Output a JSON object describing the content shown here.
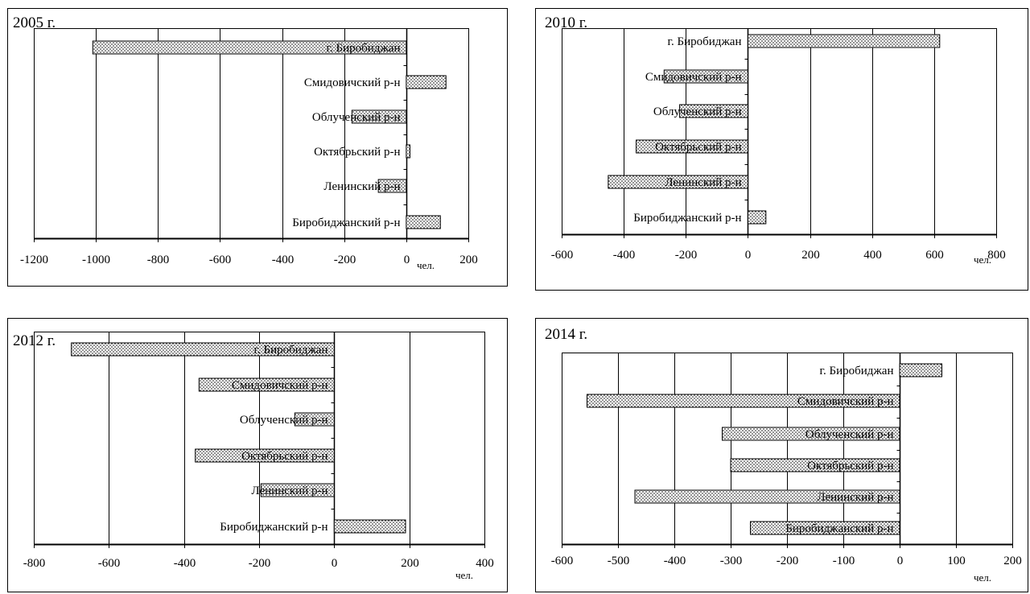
{
  "unit_label": "чел.",
  "chart_data": [
    {
      "type": "bar",
      "orientation": "horizontal",
      "title": "2005 г.",
      "categories": [
        "г. Биробиджан",
        "Смидовичский р-н",
        "Облученский р-н",
        "Октябрьский р-н",
        "Ленинский р-н",
        "Биробиджанский р-н"
      ],
      "values": [
        -1010,
        128,
        -175,
        12,
        -90,
        110
      ],
      "xlabel": "чел.",
      "xlim": [
        -1200,
        200
      ],
      "xticks": [
        -1200,
        -1000,
        -800,
        -600,
        -400,
        -200,
        0,
        200
      ],
      "grid": true
    },
    {
      "type": "bar",
      "orientation": "horizontal",
      "title": "2010 г.",
      "categories": [
        "г. Биробиджан",
        "Смидовичский р-н",
        "Облученский р-н",
        "Октябрьский р-н",
        "Ленинский р-н",
        "Биробиджанский р-н"
      ],
      "values": [
        618,
        -270,
        -220,
        -360,
        -450,
        58
      ],
      "xlabel": "чел.",
      "xlim": [
        -600,
        800
      ],
      "xticks": [
        -600,
        -400,
        -200,
        0,
        200,
        400,
        600,
        800
      ],
      "grid": true
    },
    {
      "type": "bar",
      "orientation": "horizontal",
      "title": "2012 г.",
      "categories": [
        "г. Биробиджан",
        "Смидовичский р-н",
        "Облученский р-н",
        "Октябрьский р-н",
        "Ленинский р-н",
        "Биробиджанский р-н"
      ],
      "values": [
        -700,
        -360,
        -105,
        -370,
        -195,
        190
      ],
      "xlabel": "чел.",
      "xlim": [
        -800,
        400
      ],
      "xticks": [
        -800,
        -600,
        -400,
        -200,
        0,
        200,
        400
      ],
      "grid": true
    },
    {
      "type": "bar",
      "orientation": "horizontal",
      "title": "2014 г.",
      "categories": [
        "г. Биробиджан",
        "Смидовичский р-н",
        "Облученский р-н",
        "Октябрьский р-н",
        "Ленинский р-н",
        "Биробиджанский р-н"
      ],
      "values": [
        75,
        -555,
        -315,
        -300,
        -470,
        -265
      ],
      "xlabel": "чел.",
      "xlim": [
        -600,
        200
      ],
      "xticks": [
        -600,
        -500,
        -400,
        -300,
        -200,
        -100,
        0,
        100,
        200
      ],
      "grid": true
    }
  ]
}
